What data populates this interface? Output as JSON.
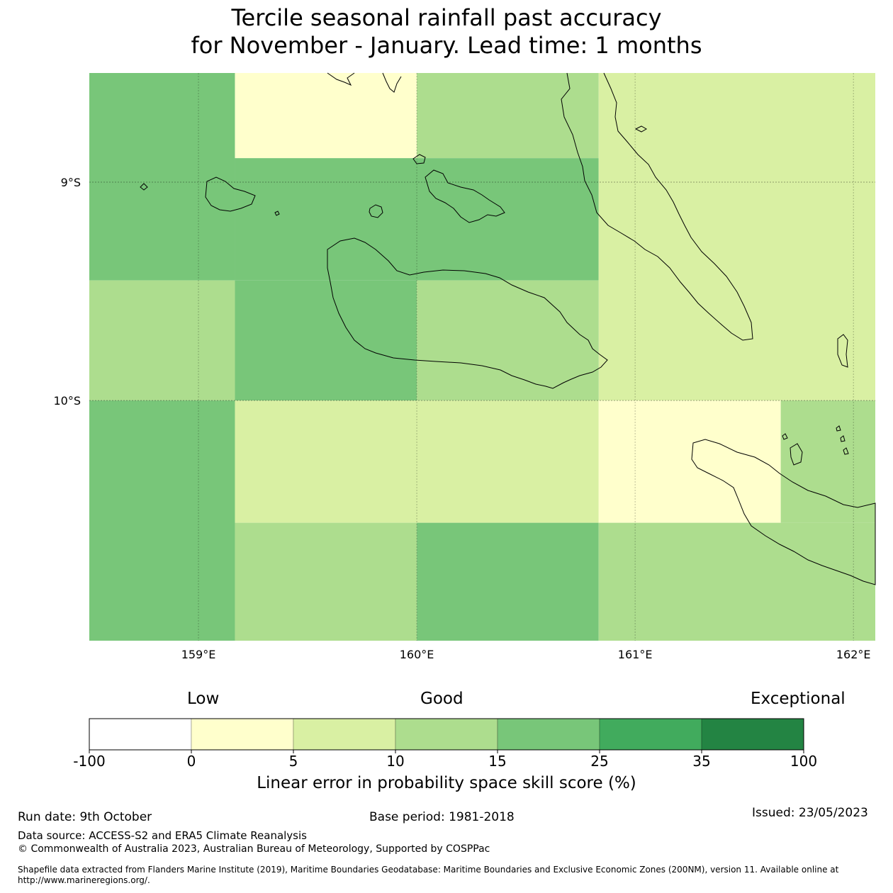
{
  "title": {
    "line1": "Tercile seasonal rainfall past accuracy",
    "line2": "for November - January. Lead time: 1 months"
  },
  "map": {
    "lon_range": [
      158.5,
      162.1
    ],
    "lat_range": [
      -8.5,
      -11.1
    ],
    "x_ticks": [
      {
        "lon": 159,
        "label": "159°E"
      },
      {
        "lon": 160,
        "label": "160°E"
      },
      {
        "lon": 161,
        "label": "161°E"
      },
      {
        "lon": 162,
        "label": "162°E"
      }
    ],
    "y_ticks": [
      {
        "lat": -9,
        "label": "9°S"
      },
      {
        "lat": -10,
        "label": "10°S"
      }
    ],
    "grid_cells": [
      {
        "lon0": 158.5,
        "lon1": 159.167,
        "lat0": -8.5,
        "lat1": -9.45,
        "score_class": 4
      },
      {
        "lon0": 159.167,
        "lon1": 160.0,
        "lat0": -8.5,
        "lat1": -8.89,
        "score_class": 1
      },
      {
        "lon0": 160.0,
        "lon1": 160.833,
        "lat0": -8.5,
        "lat1": -8.89,
        "score_class": 3
      },
      {
        "lon0": 159.167,
        "lon1": 160.833,
        "lat0": -8.89,
        "lat1": -9.45,
        "score_class": 4
      },
      {
        "lon0": 160.833,
        "lon1": 162.1,
        "lat0": -8.5,
        "lat1": -10.0,
        "score_class": 2
      },
      {
        "lon0": 158.5,
        "lon1": 159.167,
        "lat0": -9.45,
        "lat1": -10.0,
        "score_class": 3
      },
      {
        "lon0": 159.167,
        "lon1": 160.0,
        "lat0": -9.45,
        "lat1": -10.0,
        "score_class": 4
      },
      {
        "lon0": 160.0,
        "lon1": 160.833,
        "lat0": -9.45,
        "lat1": -10.0,
        "score_class": 3
      },
      {
        "lon0": 158.5,
        "lon1": 159.167,
        "lat0": -10.0,
        "lat1": -11.1,
        "score_class": 4
      },
      {
        "lon0": 159.167,
        "lon1": 160.833,
        "lat0": -10.0,
        "lat1": -10.56,
        "score_class": 2
      },
      {
        "lon0": 160.833,
        "lon1": 161.667,
        "lat0": -10.0,
        "lat1": -10.56,
        "score_class": 1
      },
      {
        "lon0": 161.667,
        "lon1": 162.1,
        "lat0": -10.0,
        "lat1": -10.56,
        "score_class": 3
      },
      {
        "lon0": 159.167,
        "lon1": 160.0,
        "lat0": -10.56,
        "lat1": -11.1,
        "score_class": 3
      },
      {
        "lon0": 160.0,
        "lon1": 160.833,
        "lat0": -10.56,
        "lat1": -11.1,
        "score_class": 4
      },
      {
        "lon0": 160.833,
        "lon1": 162.1,
        "lat0": -10.56,
        "lat1": -11.1,
        "score_class": 3
      }
    ]
  },
  "colorbar": {
    "qualitative": {
      "low": "Low",
      "good": "Good",
      "exceptional": "Exceptional"
    },
    "colors": [
      "#ffffff",
      "#ffffcc",
      "#d9f0a3",
      "#addd8e",
      "#78c679",
      "#41ab5d",
      "#238443"
    ],
    "bounds": [
      "-100",
      "0",
      "5",
      "10",
      "15",
      "25",
      "35",
      "100"
    ],
    "label": "Linear error in probability space skill score (%)"
  },
  "footer": {
    "run_date": "Run date: 9th October",
    "base_period": "Base period: 1981-2018",
    "issued": "Issued: 23/05/2023",
    "data_source": "Data source: ACCESS-S2 and ERA5 Climate Reanalysis",
    "copyright": "© Commonwealth of Australia 2023, Australian Bureau of Meteorology, Supported by COSPPac",
    "shapefile": "Shapefile data extracted from Flanders Marine Institute (2019), Maritime Boundaries Geodatabase: Maritime Boundaries and Exclusive Economic Zones (200NM), version 11. Available online at http://www.marineregions.org/."
  }
}
